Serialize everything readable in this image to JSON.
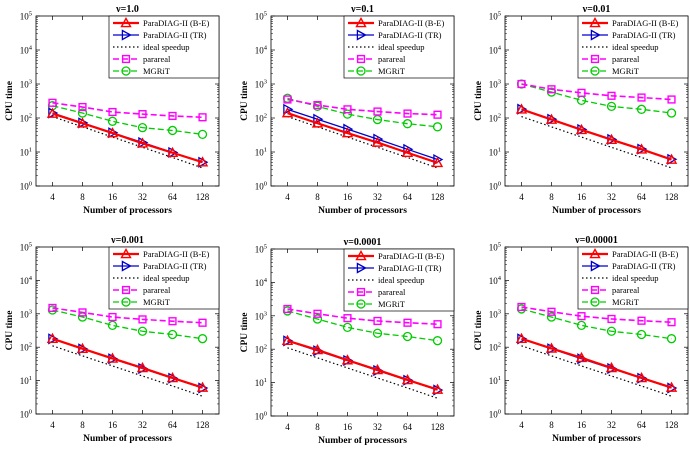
{
  "figure": {
    "ylabel": "CPU time",
    "xlabel": "Number of processors"
  },
  "legend_labels": [
    "ParaDIAG-II (B-E)",
    "ParaDIAG-II (TR)",
    "ideal speedup",
    "parareal",
    "MGRiT"
  ],
  "colors": {
    "be": "#ff0000",
    "tr": "#0000cc",
    "ideal": "#000000",
    "parareal": "#ff00ff",
    "mgrit": "#00cc00"
  },
  "chart_data": [
    {
      "type": "line",
      "title": "ν=1.0",
      "xlabel": "Number of processors",
      "ylabel": "CPU time",
      "yscale": "log",
      "ylim": [
        1,
        100000
      ],
      "y_ticks": [
        "10^0",
        "10^1",
        "10^2",
        "10^3",
        "10^4",
        "10^5"
      ],
      "x": [
        4,
        8,
        16,
        32,
        64,
        128
      ],
      "legend": "top-right",
      "series": [
        {
          "name": "ParaDIAG-II (B-E)",
          "values": [
            135,
            70,
            36,
            18,
            9.5,
            5
          ]
        },
        {
          "name": "ParaDIAG-II (TR)",
          "values": [
            140,
            72,
            37,
            19,
            9.7,
            5
          ]
        },
        {
          "name": "ideal speedup",
          "values": [
            110,
            55,
            27.5,
            13.75,
            6.9,
            3.4
          ]
        },
        {
          "name": "parareal",
          "values": [
            280,
            210,
            150,
            130,
            115,
            105
          ]
        },
        {
          "name": "MGRiT",
          "values": [
            230,
            140,
            80,
            52,
            43,
            33
          ]
        }
      ]
    },
    {
      "type": "line",
      "title": "ν=0.1",
      "xlabel": "Number of processors",
      "ylabel": "CPU time",
      "yscale": "log",
      "ylim": [
        1,
        100000
      ],
      "y_ticks": [
        "10^0",
        "10^1",
        "10^2",
        "10^3",
        "10^4",
        "10^5"
      ],
      "x": [
        4,
        8,
        16,
        32,
        64,
        128
      ],
      "legend": "top-right",
      "series": [
        {
          "name": "ParaDIAG-II (B-E)",
          "values": [
            140,
            70,
            36,
            19,
            9.5,
            4.8
          ]
        },
        {
          "name": "ParaDIAG-II (TR)",
          "values": [
            180,
            92,
            47,
            24,
            12,
            6
          ]
        },
        {
          "name": "ideal speedup",
          "values": [
            110,
            55,
            27.5,
            13.75,
            6.9,
            3.4
          ]
        },
        {
          "name": "parareal",
          "values": [
            350,
            240,
            180,
            155,
            135,
            125
          ]
        },
        {
          "name": "MGRiT",
          "values": [
            380,
            220,
            130,
            90,
            68,
            55
          ]
        }
      ]
    },
    {
      "type": "line",
      "title": "ν=0.01",
      "xlabel": "Number of processors",
      "ylabel": "CPU time",
      "yscale": "log",
      "ylim": [
        1,
        100000
      ],
      "y_ticks": [
        "10^0",
        "10^1",
        "10^2",
        "10^3",
        "10^4",
        "10^5"
      ],
      "x": [
        4,
        8,
        16,
        32,
        64,
        128
      ],
      "legend": "top-right",
      "series": [
        {
          "name": "ParaDIAG-II (B-E)",
          "values": [
            180,
            90,
            45,
            23,
            12,
            6
          ]
        },
        {
          "name": "ParaDIAG-II (TR)",
          "values": [
            182,
            92,
            46,
            23.5,
            12.2,
            6.1
          ]
        },
        {
          "name": "ideal speedup",
          "values": [
            110,
            55,
            27.5,
            13.75,
            6.9,
            3.4
          ]
        },
        {
          "name": "parareal",
          "values": [
            1000,
            700,
            550,
            450,
            400,
            350
          ]
        },
        {
          "name": "MGRiT",
          "values": [
            1000,
            580,
            330,
            220,
            180,
            140
          ]
        }
      ]
    },
    {
      "type": "line",
      "title": "ν=0.001",
      "xlabel": "Number of processors",
      "ylabel": "CPU time",
      "yscale": "log",
      "ylim": [
        1,
        100000
      ],
      "y_ticks": [
        "10^0",
        "10^1",
        "10^2",
        "10^3",
        "10^4",
        "10^5"
      ],
      "x": [
        4,
        8,
        16,
        32,
        64,
        128
      ],
      "legend": "top-right",
      "series": [
        {
          "name": "ParaDIAG-II (B-E)",
          "values": [
            180,
            90,
            46,
            24,
            12,
            6.2
          ]
        },
        {
          "name": "ParaDIAG-II (TR)",
          "values": [
            178,
            89,
            45,
            23,
            11.8,
            6
          ]
        },
        {
          "name": "ideal speedup",
          "values": [
            110,
            55,
            27.5,
            13.75,
            6.9,
            3.4
          ]
        },
        {
          "name": "parareal",
          "values": [
            1500,
            1100,
            800,
            680,
            600,
            540
          ]
        },
        {
          "name": "MGRiT",
          "values": [
            1300,
            800,
            450,
            300,
            240,
            180
          ]
        }
      ]
    },
    {
      "type": "line",
      "title": "ν=0.0001",
      "xlabel": "Number of processors",
      "ylabel": "CPU time",
      "yscale": "log",
      "ylim": [
        1,
        100000
      ],
      "y_ticks": [
        "10^0",
        "10^1",
        "10^2",
        "10^3",
        "10^4",
        "10^5"
      ],
      "x": [
        4,
        8,
        16,
        32,
        64,
        128
      ],
      "legend": "top-right",
      "series": [
        {
          "name": "ParaDIAG-II (B-E)",
          "values": [
            180,
            95,
            47,
            24,
            12,
            6.2
          ]
        },
        {
          "name": "ParaDIAG-II (TR)",
          "values": [
            178,
            90,
            46,
            23,
            11.8,
            6
          ]
        },
        {
          "name": "ideal speedup",
          "values": [
            110,
            55,
            27.5,
            13.75,
            6.9,
            3.4
          ]
        },
        {
          "name": "parareal",
          "values": [
            1600,
            1150,
            850,
            700,
            620,
            560
          ]
        },
        {
          "name": "MGRiT",
          "values": [
            1400,
            800,
            450,
            300,
            240,
            180
          ]
        }
      ]
    },
    {
      "type": "line",
      "title": "ν=0.00001",
      "xlabel": "Number of processors",
      "ylabel": "CPU time",
      "yscale": "log",
      "ylim": [
        1,
        100000
      ],
      "y_ticks": [
        "10^0",
        "10^1",
        "10^2",
        "10^3",
        "10^4",
        "10^5"
      ],
      "x": [
        4,
        8,
        16,
        32,
        64,
        128
      ],
      "legend": "top-right",
      "series": [
        {
          "name": "ParaDIAG-II (B-E)",
          "values": [
            180,
            92,
            48,
            24,
            12,
            6.2
          ]
        },
        {
          "name": "ParaDIAG-II (TR)",
          "values": [
            178,
            90,
            45,
            23,
            11.8,
            6
          ]
        },
        {
          "name": "ideal speedup",
          "values": [
            110,
            55,
            27.5,
            13.75,
            6.9,
            3.4
          ]
        },
        {
          "name": "parareal",
          "values": [
            1600,
            1150,
            850,
            700,
            620,
            560
          ]
        },
        {
          "name": "MGRiT",
          "values": [
            1400,
            800,
            450,
            300,
            240,
            180
          ]
        }
      ]
    }
  ]
}
